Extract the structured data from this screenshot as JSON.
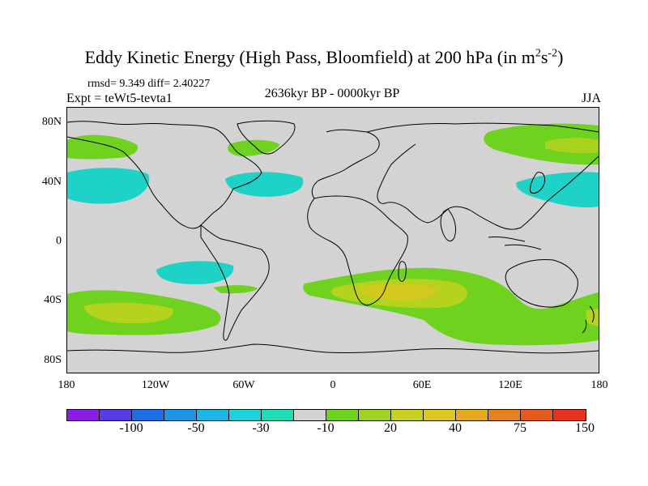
{
  "title_main": "Eddy Kinetic Energy (High Pass, Bloomfield) at 200 hPa (in m",
  "title_sup1": "2",
  "title_mid": "s",
  "title_sup2": "-2",
  "title_end": ")",
  "stats": "rmsd= 9.349 diff= 2.40227",
  "experiment": "Expt = teWt5-tevta1",
  "period": "2636kyr BP - 0000kyr BP",
  "season": "JJA",
  "lat_labels": [
    "80N",
    "40N",
    "0",
    "40S",
    "80S"
  ],
  "lon_labels": [
    "180",
    "120W",
    "60W",
    "0",
    "60E",
    "120E",
    "180"
  ],
  "colorbar": {
    "colors": [
      "#8b1ee6",
      "#5a3ce6",
      "#1e6ee6",
      "#1e96e6",
      "#1eb4e6",
      "#1ed2dc",
      "#1edcb4",
      "#d3d3d3",
      "#6ed21e",
      "#a0d21e",
      "#c8d21e",
      "#dcc81e",
      "#e6aa1e",
      "#e6821e",
      "#e65a1e",
      "#e6321e"
    ],
    "labels": [
      "-100",
      "-50",
      "-30",
      "-10",
      "20",
      "40",
      "75",
      "150"
    ]
  },
  "colors": {
    "cyan": "#1ed2c8",
    "green": "#6ed21e",
    "yellowgreen": "#b4d21e",
    "yellow": "#d2c81e",
    "land_bg": "#d3d3d3"
  }
}
